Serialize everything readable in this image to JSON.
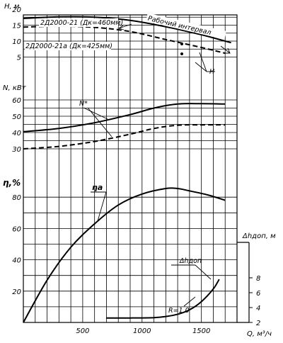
{
  "chart_data": {
    "type": "line",
    "x_axis": {
      "label": "Q, м³/ч",
      "ticks": [
        500,
        1000,
        1500
      ],
      "range": [
        0,
        1800
      ]
    },
    "panels": [
      {
        "id": "head",
        "y_label": "H, м",
        "y_range": [
          0,
          22
        ],
        "y_ticks": [
          5,
          10,
          15,
          20
        ],
        "series": [
          {
            "name": "2Д2000-21 (Дк=460мм)",
            "style": "solid",
            "x": [
              0,
              300,
              600,
              900,
              1200,
              1500,
              1750
            ],
            "y": [
              17.1,
              17.6,
              17.5,
              16.5,
              14.5,
              12,
              9.5
            ]
          },
          {
            "name": "2Д2000-21а (Дк=425мм)",
            "style": "dashed",
            "x": [
              0,
              300,
              600,
              900,
              1200,
              1500,
              1700
            ],
            "y": [
              14.4,
              14.7,
              14.3,
              13,
              10.5,
              8,
              6.2
            ]
          }
        ],
        "annotations": [
          "Рабочий интервал",
          "H"
        ]
      },
      {
        "id": "power",
        "y_label": "N, кВт",
        "y_range": [
          25,
          63
        ],
        "y_ticks": [
          30,
          40,
          50,
          60
        ],
        "series": [
          {
            "name": "N (solid)",
            "style": "solid",
            "x": [
              0,
              300,
              600,
              900,
              1100,
              1300,
              1500,
              1700
            ],
            "y": [
              40.5,
              42.5,
              46,
              51,
              55,
              57.5,
              57.7,
              57.5
            ]
          },
          {
            "name": "N (dashed)",
            "style": "dashed",
            "x": [
              0,
              300,
              600,
              900,
              1100,
              1300,
              1500,
              1700
            ],
            "y": [
              30,
              31.5,
              34.5,
              39,
              42.5,
              44.5,
              44.7,
              44.7
            ]
          }
        ],
        "annotations": [
          "N*"
        ]
      },
      {
        "id": "efficiency",
        "y_label": "η,%",
        "y_range": [
          0,
          90
        ],
        "y_ticks": [
          20,
          40,
          60,
          80
        ],
        "series": [
          {
            "name": "ηа",
            "style": "solid",
            "x": [
              0,
              200,
              400,
              600,
              800,
              1000,
              1200,
              1300,
              1400,
              1550,
              1700
            ],
            "y": [
              0,
              27,
              48,
              63,
              75,
              82,
              85.5,
              85.5,
              84,
              81.5,
              78
            ]
          }
        ],
        "annotations": [
          "ηа"
        ]
      },
      {
        "id": "npsh",
        "y_label": "Δhдоп, м",
        "y_side": "right",
        "y_range": [
          0,
          9
        ],
        "y_ticks": [
          2,
          4,
          6,
          8
        ],
        "series": [
          {
            "name": "Δhдоп",
            "style": "solid",
            "x": [
              700,
              900,
              1100,
              1200,
              1300,
              1400,
              1500,
              1600,
              1650
            ],
            "y": [
              2.6,
              2.6,
              2.65,
              2.8,
              3.1,
              3.7,
              4.8,
              6.5,
              7.8
            ]
          }
        ],
        "annotations": [
          "Δhдоп",
          "R=1,0"
        ]
      }
    ]
  }
}
